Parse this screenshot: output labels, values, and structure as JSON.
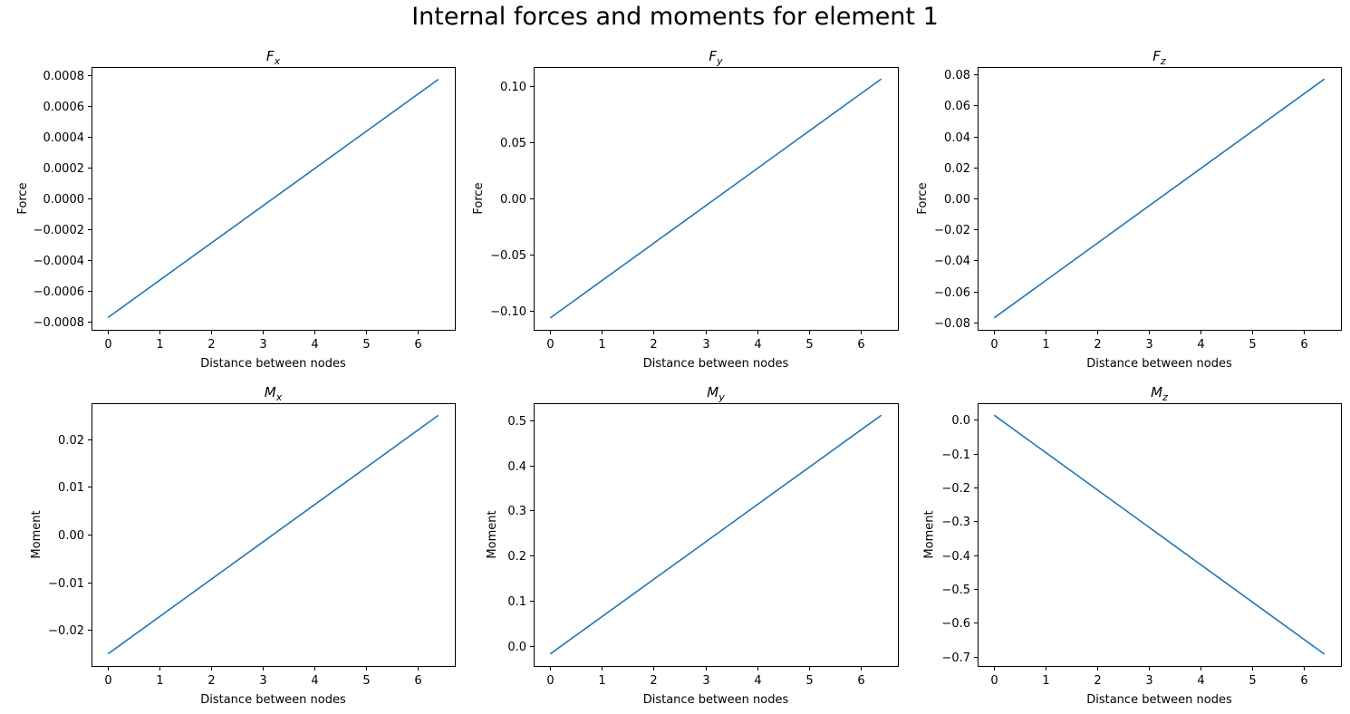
{
  "figure_title": "Internal forces and moments for element 1",
  "chart_data": [
    {
      "type": "line",
      "title": "F",
      "title_sub": "x",
      "xlabel": "Distance between nodes",
      "ylabel": "Force",
      "xlim": [
        -0.32,
        6.72
      ],
      "ylim": [
        -0.000855,
        0.000855
      ],
      "xticks": [
        0,
        1,
        2,
        3,
        4,
        5,
        6
      ],
      "xtick_labels": [
        "0",
        "1",
        "2",
        "3",
        "4",
        "5",
        "6"
      ],
      "yticks": [
        -0.0008,
        -0.0006,
        -0.0004,
        -0.0002,
        0,
        0.0002,
        0.0004,
        0.0006,
        0.0008
      ],
      "ytick_labels": [
        "−0.0008",
        "−0.0006",
        "−0.0004",
        "−0.0002",
        "0.0000",
        "0.0002",
        "0.0004",
        "0.0006",
        "0.0008"
      ],
      "series": [
        {
          "x": [
            0,
            6.4
          ],
          "y": [
            -0.000775,
            0.000775
          ]
        }
      ]
    },
    {
      "type": "line",
      "title": "F",
      "title_sub": "y",
      "xlabel": "Distance between nodes",
      "ylabel": "Force",
      "xlim": [
        -0.32,
        6.72
      ],
      "ylim": [
        -0.1165,
        0.1165
      ],
      "xticks": [
        0,
        1,
        2,
        3,
        4,
        5,
        6
      ],
      "xtick_labels": [
        "0",
        "1",
        "2",
        "3",
        "4",
        "5",
        "6"
      ],
      "yticks": [
        -0.1,
        -0.05,
        0,
        0.05,
        0.1
      ],
      "ytick_labels": [
        "−0.10",
        "−0.05",
        "0.00",
        "0.05",
        "0.10"
      ],
      "series": [
        {
          "x": [
            0,
            6.4
          ],
          "y": [
            -0.106,
            0.106
          ]
        }
      ]
    },
    {
      "type": "line",
      "title": "F",
      "title_sub": "z",
      "xlabel": "Distance between nodes",
      "ylabel": "Force",
      "xlim": [
        -0.32,
        6.72
      ],
      "ylim": [
        -0.0847,
        0.0847
      ],
      "xticks": [
        0,
        1,
        2,
        3,
        4,
        5,
        6
      ],
      "xtick_labels": [
        "0",
        "1",
        "2",
        "3",
        "4",
        "5",
        "6"
      ],
      "yticks": [
        -0.08,
        -0.06,
        -0.04,
        -0.02,
        0,
        0.02,
        0.04,
        0.06,
        0.08
      ],
      "ytick_labels": [
        "−0.08",
        "−0.06",
        "−0.04",
        "−0.02",
        "0.00",
        "0.02",
        "0.04",
        "0.06",
        "0.08"
      ],
      "series": [
        {
          "x": [
            0,
            6.4
          ],
          "y": [
            -0.077,
            0.077
          ]
        }
      ]
    },
    {
      "type": "line",
      "title": "M",
      "title_sub": "x",
      "xlabel": "Distance between nodes",
      "ylabel": "Moment",
      "xlim": [
        -0.32,
        6.72
      ],
      "ylim": [
        -0.02755,
        0.02755
      ],
      "xticks": [
        0,
        1,
        2,
        3,
        4,
        5,
        6
      ],
      "xtick_labels": [
        "0",
        "1",
        "2",
        "3",
        "4",
        "5",
        "6"
      ],
      "yticks": [
        -0.02,
        -0.01,
        0,
        0.01,
        0.02
      ],
      "ytick_labels": [
        "−0.02",
        "−0.01",
        "0.00",
        "0.01",
        "0.02"
      ],
      "series": [
        {
          "x": [
            0,
            6.4
          ],
          "y": [
            -0.025,
            0.025
          ]
        }
      ]
    },
    {
      "type": "line",
      "title": "M",
      "title_sub": "y",
      "xlabel": "Distance between nodes",
      "ylabel": "Moment",
      "xlim": [
        -0.32,
        6.72
      ],
      "ylim": [
        -0.0447,
        0.5377
      ],
      "xticks": [
        0,
        1,
        2,
        3,
        4,
        5,
        6
      ],
      "xtick_labels": [
        "0",
        "1",
        "2",
        "3",
        "4",
        "5",
        "6"
      ],
      "yticks": [
        0,
        0.1,
        0.2,
        0.3,
        0.4,
        0.5
      ],
      "ytick_labels": [
        "0.0",
        "0.1",
        "0.2",
        "0.3",
        "0.4",
        "0.5"
      ],
      "series": [
        {
          "x": [
            0,
            6.4
          ],
          "y": [
            -0.018,
            0.511
          ]
        }
      ]
    },
    {
      "type": "line",
      "title": "M",
      "title_sub": "z",
      "xlabel": "Distance between nodes",
      "ylabel": "Moment",
      "xlim": [
        -0.32,
        6.72
      ],
      "ylim": [
        -0.7279,
        0.0489
      ],
      "xticks": [
        0,
        1,
        2,
        3,
        4,
        5,
        6
      ],
      "xtick_labels": [
        "0",
        "1",
        "2",
        "3",
        "4",
        "5",
        "6"
      ],
      "yticks": [
        -0.7,
        -0.6,
        -0.5,
        -0.4,
        -0.3,
        -0.2,
        -0.1,
        0
      ],
      "ytick_labels": [
        "−0.7",
        "−0.6",
        "−0.5",
        "−0.4",
        "−0.3",
        "−0.2",
        "−0.1",
        "0.0"
      ],
      "series": [
        {
          "x": [
            0,
            6.4
          ],
          "y": [
            0.0136,
            -0.693
          ]
        }
      ]
    }
  ],
  "colors": {
    "line": "#1f77b4",
    "frame": "#000000"
  }
}
